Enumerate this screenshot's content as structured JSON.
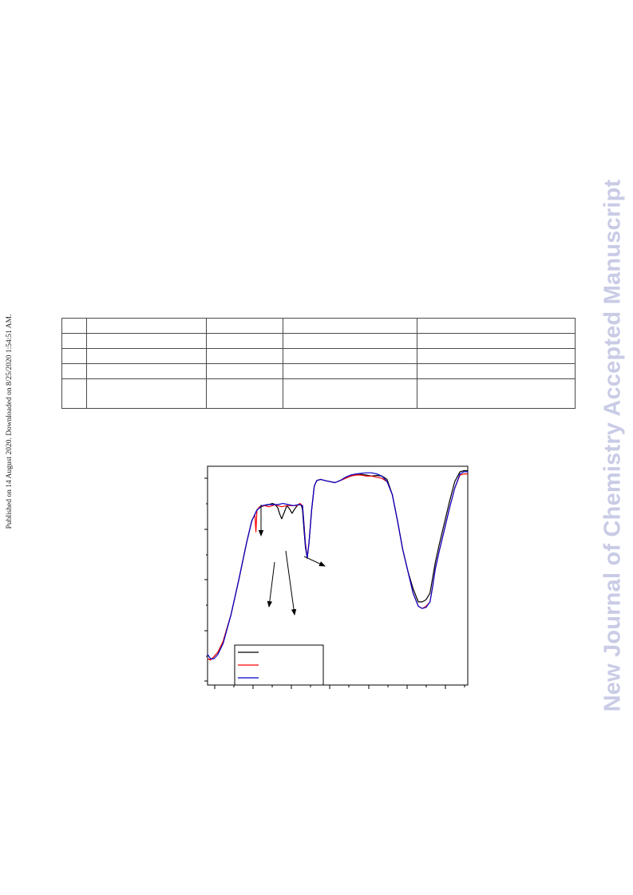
{
  "side_note": "Published on 14 August 2020. Downloaded on 8/25/2020 1:54:51 AM.",
  "watermark": "New Journal of Chemistry Accepted Manuscript",
  "table": {
    "rows": [
      [
        "",
        "",
        "",
        "",
        ""
      ],
      [
        "",
        "",
        "",
        "",
        ""
      ],
      [
        "",
        "",
        "",
        "",
        ""
      ],
      [
        "",
        "",
        "",
        "",
        ""
      ],
      [
        "",
        "",
        "",
        "",
        ""
      ]
    ]
  },
  "chart_data": {
    "type": "line",
    "title": "",
    "xlabel": "",
    "ylabel": "",
    "xlim": [
      0,
      100
    ],
    "ylim": [
      0,
      100
    ],
    "grid": false,
    "legend_position": "bottom-left",
    "series": [
      {
        "color": "#000000",
        "x": [
          0,
          1.2,
          2.5,
          4,
          6,
          9,
          12,
          15,
          17,
          19,
          20.5,
          22,
          23.5,
          25,
          26,
          27,
          27.8,
          28.5,
          29.5,
          30.5,
          31.5,
          32.5,
          33.5,
          34.5,
          35.2,
          36,
          36.5,
          37,
          37.6,
          38.3,
          39,
          40,
          41,
          42,
          43.5,
          45,
          47,
          49,
          51,
          53,
          55,
          57,
          59,
          61,
          63,
          65,
          67,
          69,
          71,
          73,
          75,
          77,
          79,
          81,
          82.5,
          84,
          85.5,
          86.5,
          87.5,
          89,
          91,
          93,
          95,
          97,
          98.5,
          100
        ],
        "y": [
          12,
          11.5,
          13,
          15,
          20,
          32,
          48,
          65,
          75,
          80,
          81.5,
          82,
          82.5,
          83,
          82.5,
          81,
          78,
          76,
          79,
          82,
          80.5,
          78.5,
          80.5,
          82,
          82.8,
          82.5,
          80,
          72,
          63,
          58,
          65,
          80,
          91,
          93.5,
          94,
          93.5,
          93,
          92.5,
          93.5,
          94.5,
          95.5,
          96,
          96.3,
          96,
          95.5,
          95.8,
          95.5,
          94,
          87,
          75,
          62,
          52,
          44,
          38,
          38,
          39,
          42,
          49,
          56,
          64,
          74,
          84,
          93,
          97.5,
          98,
          98
        ]
      },
      {
        "color": "#ff0000",
        "x": [
          0,
          1.2,
          2.5,
          4,
          6,
          9,
          12,
          15,
          17,
          18.2,
          18.6,
          19,
          20,
          22,
          23.5,
          25,
          26,
          27,
          28.5,
          30.5,
          32.5,
          34.5,
          35.5,
          36.5,
          37,
          37.6,
          38.3,
          39,
          40,
          41,
          42,
          43.5,
          45,
          47,
          49,
          51,
          53,
          55,
          57,
          59,
          61,
          63,
          65,
          67,
          69,
          71,
          73,
          75,
          77,
          79,
          81,
          82.5,
          84,
          85.5,
          86.5,
          87.5,
          89,
          91,
          93,
          95,
          97,
          98.5,
          100
        ],
        "y": [
          12,
          11.5,
          13,
          15,
          20,
          32,
          48,
          65,
          75,
          78,
          70,
          80,
          81.5,
          82,
          81.5,
          82,
          82.5,
          82,
          81.5,
          82,
          82,
          82,
          83,
          82,
          75,
          65,
          58,
          65,
          80,
          91,
          93.5,
          94,
          93.5,
          93,
          92.5,
          93.5,
          94.5,
          95.5,
          96,
          96,
          95.5,
          95.5,
          95,
          94.5,
          93,
          87,
          75,
          62,
          52,
          42,
          36,
          35,
          36,
          38,
          45,
          53,
          61,
          71,
          81,
          90,
          96,
          96.5,
          96.5
        ]
      },
      {
        "color": "#0000cc",
        "x": [
          0,
          1.2,
          2.5,
          4,
          6,
          9,
          12,
          15,
          17,
          19,
          21,
          23,
          25,
          27,
          29,
          31,
          33,
          35,
          36.5,
          37,
          37.6,
          38.3,
          39,
          40,
          41,
          42,
          43.5,
          45,
          47,
          49,
          51,
          53,
          55,
          57,
          59,
          61,
          63,
          65,
          67,
          69,
          71,
          73,
          75,
          77,
          79,
          81,
          82.5,
          84,
          85.5,
          86.5,
          87.5,
          89,
          91,
          93,
          95,
          97,
          98.5,
          100
        ],
        "y": [
          14,
          12,
          12,
          14,
          19,
          32,
          48,
          65,
          75,
          80,
          82,
          82.5,
          82.5,
          82.5,
          83,
          82.5,
          82,
          82.5,
          82,
          74,
          64,
          58,
          65,
          80,
          91,
          93.5,
          94,
          93.5,
          93,
          92.5,
          93.5,
          95,
          96,
          96.5,
          96.8,
          97,
          97,
          96.5,
          95.5,
          93,
          87,
          75,
          62,
          52,
          42,
          36,
          35,
          35.5,
          38,
          45,
          53,
          61,
          71,
          81,
          90,
          96.5,
          97.5,
          97.5
        ]
      }
    ]
  }
}
